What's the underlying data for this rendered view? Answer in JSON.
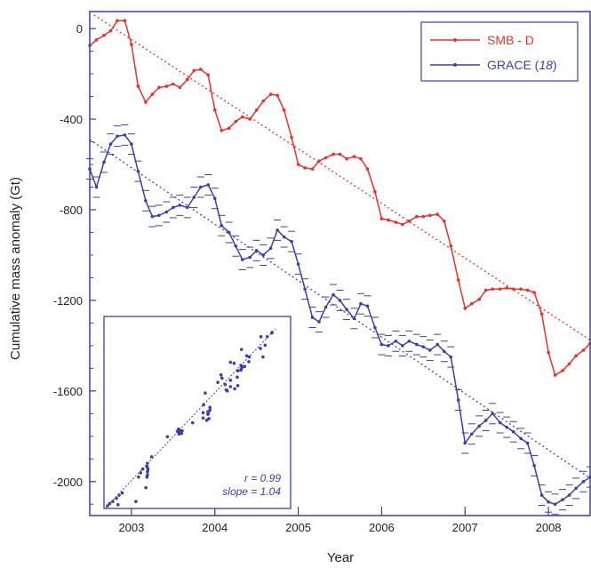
{
  "chart_data": {
    "type": "line",
    "xlabel": "Year",
    "ylabel": "Cumulative mass anomaly (Gt)",
    "xlim": [
      2002.5,
      2008.5
    ],
    "ylim": [
      -2150,
      75
    ],
    "x_ticks": [
      2003,
      2004,
      2005,
      2006,
      2007,
      2008
    ],
    "x_tick_labels": [
      "2003",
      "2004",
      "2005",
      "2006",
      "2007",
      "2008"
    ],
    "y_ticks": [
      0,
      -400,
      -800,
      -1200,
      -1600,
      -2000
    ],
    "y_tick_labels": [
      "0",
      "-400",
      "-800",
      "-1200",
      "-1600",
      "-2000"
    ],
    "grid": false,
    "legend": {
      "placement": "top-right",
      "entries": [
        {
          "text": "SMB - D",
          "suffix": ""
        },
        {
          "text": "GRACE (",
          "italic": "18",
          "suffix": ")"
        }
      ]
    },
    "series": [
      {
        "name": "SMB - D",
        "color": "#e8312a",
        "x": [
          2002.5,
          2002.58,
          2002.67,
          2002.75,
          2002.83,
          2002.92,
          2003.0,
          2003.08,
          2003.17,
          2003.25,
          2003.33,
          2003.42,
          2003.5,
          2003.58,
          2003.67,
          2003.75,
          2003.83,
          2003.92,
          2004.0,
          2004.08,
          2004.17,
          2004.25,
          2004.33,
          2004.42,
          2004.5,
          2004.58,
          2004.67,
          2004.75,
          2004.83,
          2004.92,
          2005.0,
          2005.08,
          2005.17,
          2005.25,
          2005.33,
          2005.42,
          2005.5,
          2005.58,
          2005.67,
          2005.75,
          2005.83,
          2005.92,
          2006.0,
          2006.08,
          2006.17,
          2006.25,
          2006.33,
          2006.42,
          2006.5,
          2006.58,
          2006.67,
          2006.75,
          2006.83,
          2006.92,
          2007.0,
          2007.08,
          2007.17,
          2007.25,
          2007.33,
          2007.42,
          2007.5,
          2007.58,
          2007.67,
          2007.75,
          2007.83,
          2007.92,
          2008.0,
          2008.08,
          2008.17,
          2008.25,
          2008.33,
          2008.42,
          2008.5
        ],
        "values": [
          -75,
          -50,
          -30,
          -10,
          35,
          35,
          -70,
          -255,
          -325,
          -290,
          -260,
          -255,
          -245,
          -260,
          -225,
          -185,
          -180,
          -205,
          -360,
          -450,
          -440,
          -410,
          -390,
          -400,
          -360,
          -320,
          -290,
          -295,
          -360,
          -480,
          -600,
          -615,
          -620,
          -585,
          -570,
          -555,
          -555,
          -575,
          -565,
          -575,
          -620,
          -720,
          -840,
          -845,
          -855,
          -865,
          -850,
          -830,
          -830,
          -825,
          -820,
          -850,
          -960,
          -1110,
          -1235,
          -1215,
          -1195,
          -1155,
          -1150,
          -1150,
          -1145,
          -1150,
          -1150,
          -1155,
          -1165,
          -1260,
          -1430,
          -1530,
          -1510,
          -1480,
          -1445,
          -1420,
          -1390
        ]
      },
      {
        "name": "GRACE (18)",
        "color": "#3b3fa6",
        "x": [
          2002.5,
          2002.58,
          2002.67,
          2002.75,
          2002.83,
          2002.92,
          2003.0,
          2003.08,
          2003.17,
          2003.25,
          2003.33,
          2003.42,
          2003.5,
          2003.58,
          2003.67,
          2003.75,
          2003.83,
          2003.92,
          2004.0,
          2004.08,
          2004.17,
          2004.25,
          2004.33,
          2004.42,
          2004.5,
          2004.58,
          2004.67,
          2004.75,
          2004.83,
          2004.92,
          2005.0,
          2005.08,
          2005.17,
          2005.25,
          2005.33,
          2005.42,
          2005.5,
          2005.58,
          2005.67,
          2005.75,
          2005.83,
          2005.92,
          2006.0,
          2006.08,
          2006.17,
          2006.25,
          2006.33,
          2006.42,
          2006.5,
          2006.58,
          2006.67,
          2006.75,
          2006.83,
          2006.92,
          2007.0,
          2007.08,
          2007.17,
          2007.25,
          2007.33,
          2007.42,
          2007.5,
          2007.58,
          2007.67,
          2007.75,
          2007.83,
          2007.92,
          2008.0,
          2008.08,
          2008.17,
          2008.25,
          2008.33,
          2008.42,
          2008.5
        ],
        "values": [
          -620,
          -700,
          -590,
          -510,
          -475,
          -470,
          -510,
          -630,
          -760,
          -830,
          -825,
          -810,
          -790,
          -780,
          -790,
          -745,
          -700,
          -690,
          -750,
          -870,
          -900,
          -960,
          -1020,
          -1010,
          -980,
          -1000,
          -970,
          -890,
          -920,
          -940,
          -1040,
          -1150,
          -1275,
          -1295,
          -1230,
          -1175,
          -1200,
          -1240,
          -1280,
          -1215,
          -1225,
          -1320,
          -1395,
          -1400,
          -1380,
          -1400,
          -1380,
          -1395,
          -1405,
          -1420,
          -1395,
          -1425,
          -1450,
          -1640,
          -1830,
          -1790,
          -1755,
          -1730,
          -1700,
          -1740,
          -1760,
          -1780,
          -1810,
          -1830,
          -1930,
          -2060,
          -2090,
          -2100,
          -2080,
          -2060,
          -2030,
          -2000,
          -1980
        ]
      }
    ],
    "trend_lines": [
      {
        "series": "SMB - D",
        "x": [
          2002.55,
          2008.5
        ],
        "values": [
          60,
          -1375
        ]
      },
      {
        "series": "GRACE (18)",
        "x": [
          2002.5,
          2008.5
        ],
        "values": [
          -490,
          -1985
        ]
      }
    ],
    "inset": {
      "type": "scatter",
      "annotation_r": "r = 0.99",
      "annotation_slope": "slope = 1.04",
      "color": "#3b3fa6"
    }
  }
}
